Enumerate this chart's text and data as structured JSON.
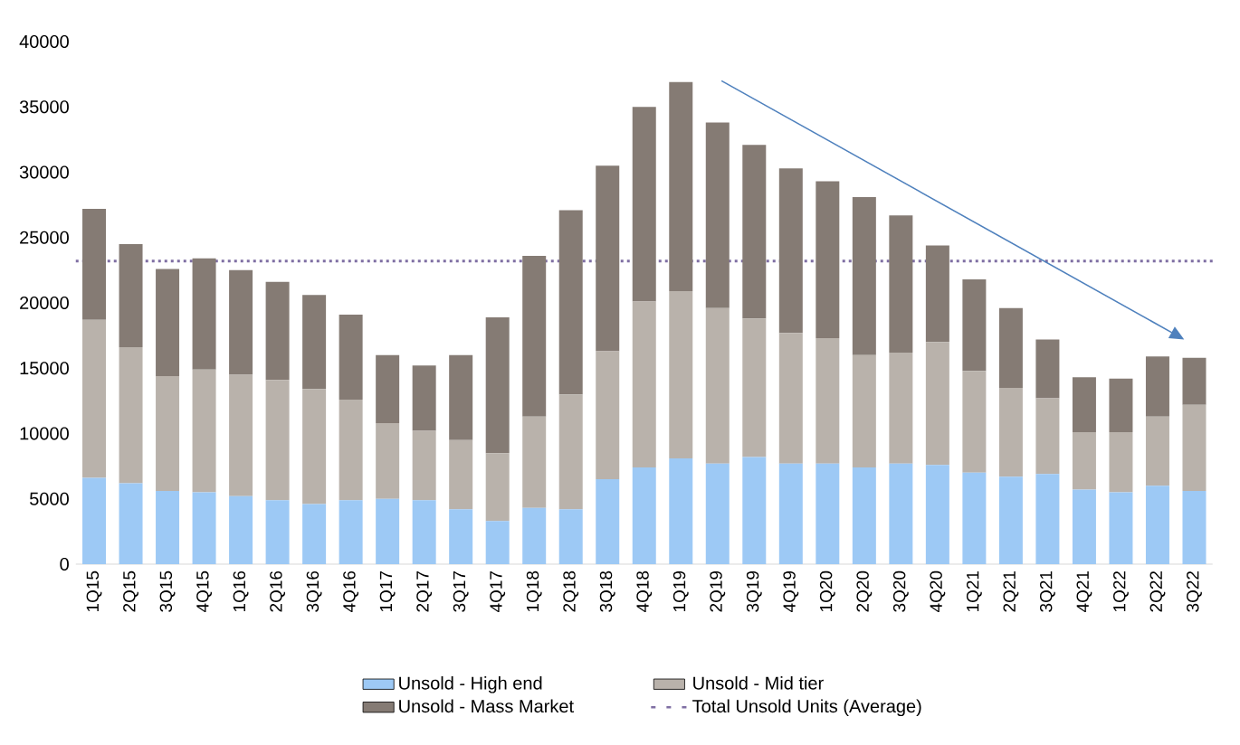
{
  "chart_data": {
    "type": "bar",
    "stacked": true,
    "categories": [
      "1Q15",
      "2Q15",
      "3Q15",
      "4Q15",
      "1Q16",
      "2Q16",
      "3Q16",
      "4Q16",
      "1Q17",
      "2Q17",
      "3Q17",
      "4Q17",
      "1Q18",
      "2Q18",
      "3Q18",
      "4Q18",
      "1Q19",
      "2Q19",
      "3Q19",
      "4Q19",
      "1Q20",
      "2Q20",
      "3Q20",
      "4Q20",
      "1Q21",
      "2Q21",
      "3Q21",
      "4Q21",
      "1Q22",
      "2Q22",
      "3Q22"
    ],
    "series": [
      {
        "name": "Unsold - High end",
        "color": "#9dc9f5",
        "values": [
          6600,
          6200,
          5600,
          5500,
          5200,
          4900,
          4600,
          4900,
          5000,
          4900,
          4200,
          3300,
          4300,
          4200,
          6500,
          7400,
          8100,
          7700,
          8200,
          7700,
          7700,
          7400,
          7700,
          7600,
          7000,
          6700,
          6900,
          5700,
          5500,
          6000,
          5600
        ]
      },
      {
        "name": "Unsold - Mid tier",
        "color": "#b9b2ab",
        "values": [
          12100,
          10400,
          8800,
          9400,
          9300,
          9200,
          8800,
          7700,
          5800,
          5300,
          5300,
          5200,
          7000,
          8800,
          9800,
          12700,
          12800,
          11900,
          10600,
          10000,
          9600,
          8600,
          8500,
          9400,
          7800,
          6800,
          5800,
          4400,
          4600,
          5300,
          6600
        ]
      },
      {
        "name": "Unsold - Mass Market",
        "color": "#857b74",
        "values": [
          8500,
          7900,
          8200,
          8500,
          8000,
          7500,
          7200,
          6500,
          5200,
          5000,
          6500,
          10400,
          12300,
          14100,
          14200,
          14900,
          16000,
          14200,
          13300,
          12600,
          12000,
          12100,
          10500,
          7400,
          7000,
          6100,
          4500,
          4200,
          4100,
          4600,
          3600
        ]
      }
    ],
    "ref_lines": [
      {
        "axis": "y",
        "value": 23200,
        "label": "Total Unsold Units (Average)",
        "color": "#7f6fa3",
        "line_style": "dotted"
      }
    ],
    "ylim": [
      0,
      40000
    ],
    "yticks": [
      0,
      5000,
      10000,
      15000,
      20000,
      25000,
      30000,
      35000,
      40000
    ],
    "grid": false,
    "legend": "bottom"
  }
}
